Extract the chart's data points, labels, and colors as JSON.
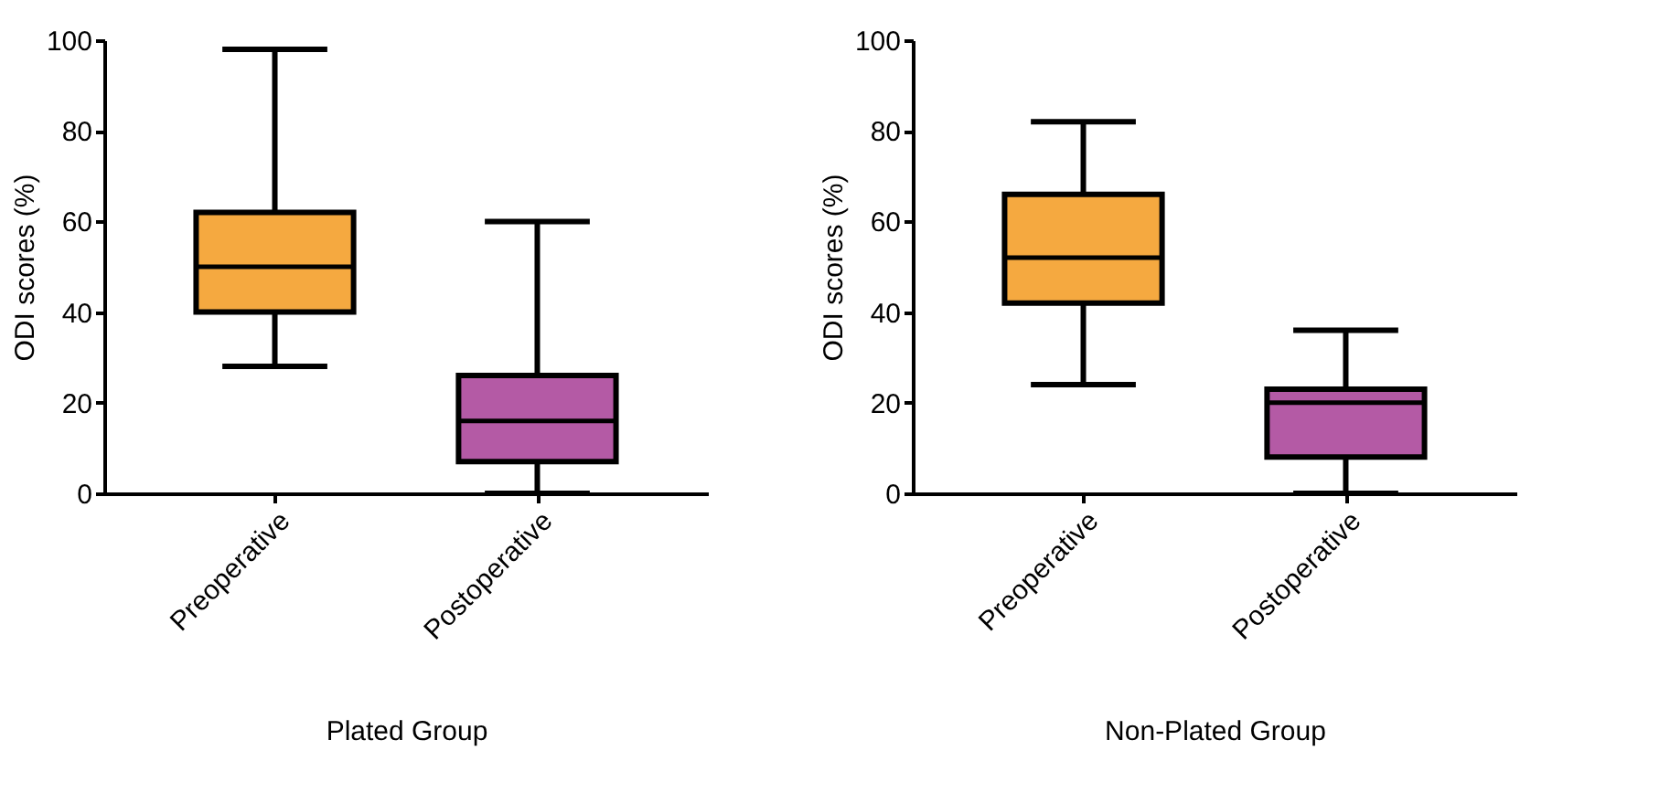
{
  "chart_data": [
    {
      "type": "box",
      "categories": [
        "Preoperative",
        "Postoperative"
      ],
      "xlabel": "Plated Group",
      "ylabel": "ODI scores (%)",
      "ylim": [
        0,
        100
      ],
      "yticks": [
        0,
        20,
        40,
        60,
        80,
        100
      ],
      "colors": [
        "#f5a940",
        "#b45aa5"
      ],
      "boxes": [
        {
          "low": 28,
          "q1": 40,
          "median": 50,
          "q3": 62,
          "high": 98
        },
        {
          "low": 0,
          "q1": 7,
          "median": 16,
          "q3": 26,
          "high": 60
        }
      ]
    },
    {
      "type": "box",
      "categories": [
        "Preoperative",
        "Postoperative"
      ],
      "xlabel": "Non-Plated Group",
      "ylabel": "ODI scores (%)",
      "ylim": [
        0,
        100
      ],
      "yticks": [
        0,
        20,
        40,
        60,
        80,
        100
      ],
      "colors": [
        "#f5a940",
        "#b45aa5"
      ],
      "boxes": [
        {
          "low": 24,
          "q1": 42,
          "median": 52,
          "q3": 66,
          "high": 82
        },
        {
          "low": 0,
          "q1": 8,
          "median": 20,
          "q3": 23,
          "high": 36
        }
      ]
    }
  ]
}
